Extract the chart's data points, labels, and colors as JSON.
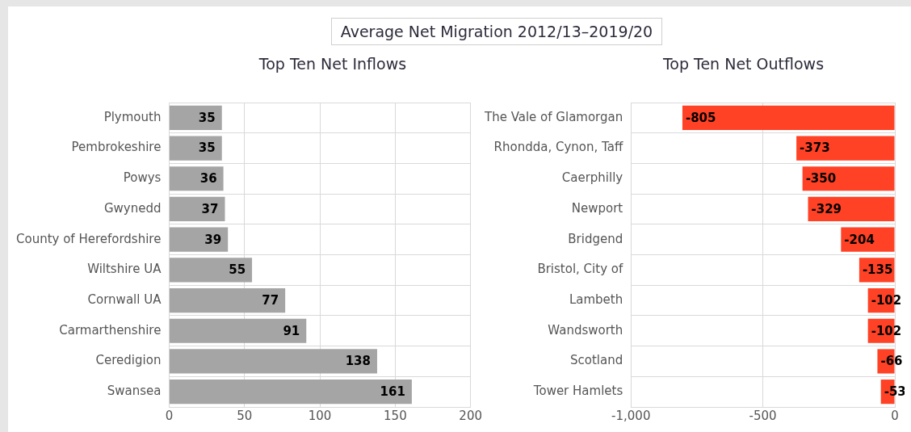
{
  "chart_data": [
    {
      "type": "bar",
      "title": "Average Net Migration 2012/13–2019/20",
      "subtitle": "Top Ten Net Inflows",
      "orientation": "horizontal",
      "categories": [
        "Plymouth",
        "Pembrokeshire",
        "Powys",
        "Gwynedd",
        "County of Herefordshire",
        "Wiltshire UA",
        "Cornwall UA",
        "Carmarthenshire",
        "Ceredigion",
        "Swansea"
      ],
      "values": [
        35,
        35,
        36,
        37,
        39,
        55,
        77,
        91,
        138,
        161
      ],
      "color": "#a5a5a5",
      "xlim": [
        0,
        200
      ],
      "xticks": [
        0,
        50,
        100,
        150,
        200
      ],
      "grid": true,
      "data_labels": true
    },
    {
      "type": "bar",
      "subtitle": "Top Ten Net Outflows",
      "orientation": "horizontal",
      "categories": [
        "The Vale of Glamorgan",
        "Rhondda, Cynon, Taff",
        "Caerphilly",
        "Newport",
        "Bridgend",
        "Bristol, City of",
        "Lambeth",
        "Wandsworth",
        "Scotland",
        "Tower Hamlets"
      ],
      "values": [
        -805,
        -373,
        -350,
        -329,
        -204,
        -135,
        -102,
        -102,
        -66,
        -53
      ],
      "color": "#ff4125",
      "xlim": [
        -1000,
        0
      ],
      "xticks": [
        {
          "value": -1000,
          "label": "-1,000"
        },
        -500,
        0
      ],
      "grid": true,
      "data_labels": true
    }
  ]
}
